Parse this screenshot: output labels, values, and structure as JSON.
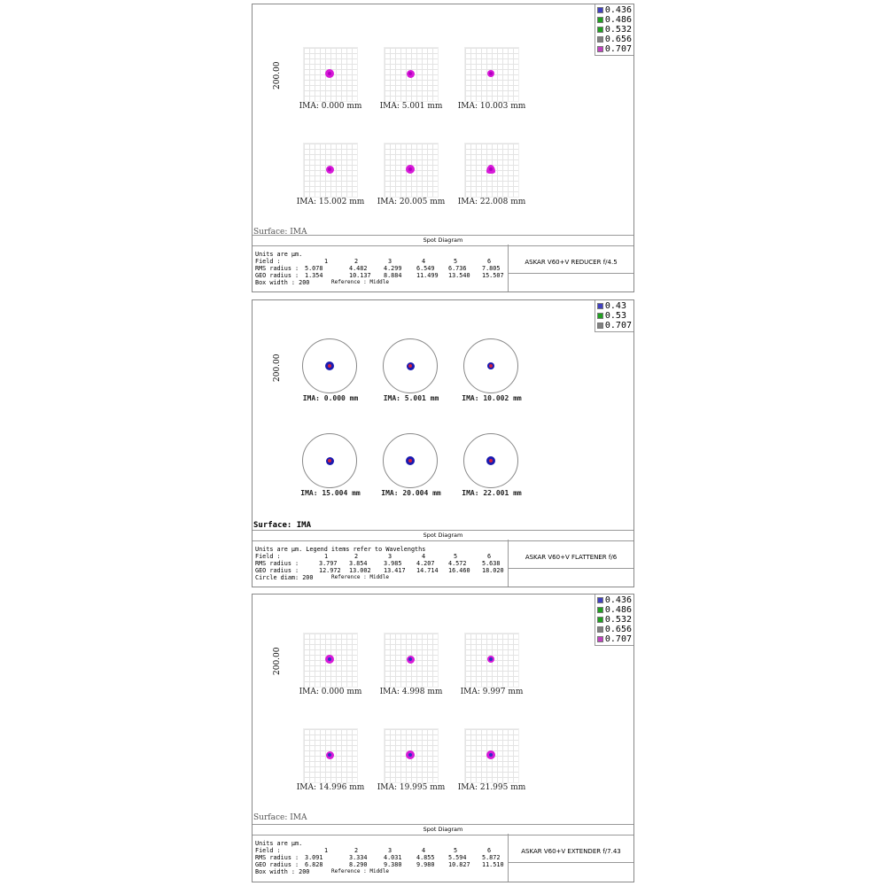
{
  "panels": [
    {
      "style": "grid",
      "spot_color": "#d81ad8",
      "spot_core": "#b000c0",
      "legend": [
        "0.436",
        "0.486",
        "0.532",
        "0.656",
        "0.707"
      ],
      "legend_colors": [
        "#4040c0",
        "#20a020",
        "#20a020",
        "#808080",
        "#c040c0"
      ],
      "y_axis": "200.00",
      "fields": [
        "IMA: 0.000 mm",
        "IMA: 5.001 mm",
        "IMA: 10.003 mm",
        "IMA: 15.002 mm",
        "IMA: 20.005 mm",
        "IMA: 22.008 mm"
      ],
      "surface": "Surface: IMA",
      "title": "Spot Diagram",
      "lens": "ASKAR V60+V REDUCER  f/4.5",
      "table": {
        "intro": "Units are µm.",
        "field_label": "Field        :",
        "fields": [
          "1",
          "2",
          "3",
          "4",
          "5",
          "6"
        ],
        "rms_label": "RMS radius :",
        "rms": [
          "5.078",
          "4.482",
          "4.299",
          "6.549",
          "6.736",
          "7.805"
        ],
        "geo_label": "GEO radius :",
        "geo": [
          "1.354",
          "10.137",
          "8.884",
          "11.499",
          "13.540",
          "15.507"
        ],
        "size_label": "Box width   :  200",
        "reference": "Reference   : Middle"
      }
    },
    {
      "style": "circle",
      "spot_color": "#1a1ab0",
      "spot_core": "#d02040",
      "legend": [
        "0.43",
        "0.53",
        "0.707"
      ],
      "legend_colors": [
        "#4040c0",
        "#20a020",
        "#808080"
      ],
      "y_axis": "200.00",
      "fields": [
        "IMA: 0.000 mm",
        "IMA: 5.001 mm",
        "IMA: 10.002 mm",
        "IMA: 15.004 mm",
        "IMA: 20.004 mm",
        "IMA: 22.001 mm"
      ],
      "surface": "Surface: IMA",
      "title": "Spot Diagram",
      "lens": "ASKAR V60+V FLATTENER  f/6",
      "table": {
        "intro": "Units are µm. Legend items refer to Wavelengths",
        "field_label": "Field        :",
        "fields": [
          "1",
          "2",
          "3",
          "4",
          "5",
          "6"
        ],
        "rms_label": "RMS radius :",
        "rms": [
          "3.797",
          "3.854",
          "3.985",
          "4.207",
          "4.572",
          "5.638"
        ],
        "geo_label": "GEO radius :",
        "geo": [
          "12.972",
          "13.002",
          "13.417",
          "14.714",
          "16.460",
          "18.020"
        ],
        "size_label": "Circle diam: 200",
        "reference": "Reference   : Middle"
      }
    },
    {
      "style": "grid",
      "spot_color": "#d81ad8",
      "spot_core": "#3030c0",
      "legend": [
        "0.436",
        "0.486",
        "0.532",
        "0.656",
        "0.707"
      ],
      "legend_colors": [
        "#4040c0",
        "#20a020",
        "#20a020",
        "#808080",
        "#c040c0"
      ],
      "y_axis": "200.00",
      "fields": [
        "IMA: 0.000 mm",
        "IMA: 4.998 mm",
        "IMA: 9.997 mm",
        "IMA: 14.996 mm",
        "IMA: 19.995 mm",
        "IMA: 21.995 mm"
      ],
      "surface": "Surface: IMA",
      "title": "Spot Diagram",
      "lens": "ASKAR V60+V EXTENDER  f/7.43",
      "table": {
        "intro": "Units are µm.",
        "field_label": "Field        :",
        "fields": [
          "1",
          "2",
          "3",
          "4",
          "5",
          "6"
        ],
        "rms_label": "RMS radius :",
        "rms": [
          "3.091",
          "3.334",
          "4.031",
          "4.855",
          "5.594",
          "5.872"
        ],
        "geo_label": "GEO radius :",
        "geo": [
          "6.828",
          "8.290",
          "9.380",
          "9.980",
          "10.827",
          "11.510"
        ],
        "size_label": "Box width   :  200",
        "reference": "Reference   : Middle"
      }
    }
  ]
}
